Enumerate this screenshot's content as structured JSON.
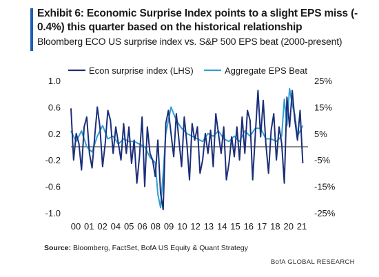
{
  "header": {
    "title_line1": "Exhibit 6: Economic Surprise Index points to a slight EPS miss (-",
    "title_line2": "0.4%) this quarter based on the historical relationship",
    "subtitle": "Bloomberg ECO US surprise index vs. S&P 500 EPS beat (2000-present)",
    "accent_color": "#1f5fae"
  },
  "chart_data": {
    "type": "line",
    "title": "",
    "xlabel": "",
    "ylabel_left": "",
    "ylabel_right": "",
    "x_tick_labels": [
      "00",
      "01",
      "02",
      "04",
      "05",
      "06",
      "08",
      "09",
      "10",
      "12",
      "13",
      "14",
      "15",
      "16",
      "17",
      "18",
      "20",
      "21"
    ],
    "x_range": [
      2000,
      2022.5
    ],
    "y_left_range": [
      -1.0,
      1.0
    ],
    "y_left_ticks": [
      1.0,
      0.6,
      0.2,
      -0.2,
      -0.6,
      -1.0
    ],
    "y_left_tick_labels": [
      "1.0",
      "0.6",
      "0.2",
      "-0.2",
      "-0.6",
      "-1.0"
    ],
    "y_right_range": [
      -25,
      25
    ],
    "y_right_ticks": [
      25,
      15,
      5,
      -5,
      -15,
      -25
    ],
    "y_right_tick_labels": [
      "25%",
      "15%",
      "5%",
      "-5%",
      "-15%",
      "-25%"
    ],
    "grid": false,
    "zero_line": true,
    "legend_position": "top",
    "series": [
      {
        "name": "Econ surprise index (LHS)",
        "axis": "left",
        "color": "#1b2f78",
        "x": [
          2000,
          2000.25,
          2000.5,
          2000.75,
          2001,
          2001.25,
          2001.5,
          2001.75,
          2002,
          2002.25,
          2002.5,
          2002.75,
          2003,
          2003.25,
          2003.5,
          2003.75,
          2004,
          2004.25,
          2004.5,
          2004.75,
          2005,
          2005.25,
          2005.5,
          2005.75,
          2006,
          2006.25,
          2006.5,
          2006.75,
          2007,
          2007.25,
          2007.5,
          2007.75,
          2008,
          2008.25,
          2008.5,
          2008.75,
          2009,
          2009.25,
          2009.5,
          2009.75,
          2010,
          2010.25,
          2010.5,
          2010.75,
          2011,
          2011.25,
          2011.5,
          2011.75,
          2012,
          2012.25,
          2012.5,
          2012.75,
          2013,
          2013.25,
          2013.5,
          2013.75,
          2014,
          2014.25,
          2014.5,
          2014.75,
          2015,
          2015.25,
          2015.5,
          2015.75,
          2016,
          2016.25,
          2016.5,
          2016.75,
          2017,
          2017.25,
          2017.5,
          2017.75,
          2018,
          2018.25,
          2018.5,
          2018.75,
          2019,
          2019.25,
          2019.5,
          2019.75,
          2020,
          2020.25,
          2020.5,
          2020.75,
          2021,
          2021.25,
          2021.5,
          2021.75,
          2022
        ],
        "values": [
          0.58,
          -0.2,
          0.2,
          0.05,
          -0.35,
          0.3,
          0.45,
          -0.1,
          -0.32,
          0.15,
          0.6,
          0.3,
          -0.3,
          0.05,
          0.55,
          0.4,
          -0.1,
          0.3,
          0.05,
          -0.2,
          0.35,
          -0.1,
          0.3,
          -0.25,
          0.1,
          -0.55,
          -0.15,
          0.45,
          -0.6,
          0.3,
          -0.1,
          -0.2,
          -0.45,
          0.1,
          -0.7,
          -0.95,
          0.35,
          0.55,
          0.2,
          -0.15,
          0.5,
          0.1,
          -0.3,
          0.45,
          0.05,
          -0.5,
          0.35,
          0.1,
          0.3,
          -0.4,
          -0.2,
          0.2,
          -0.1,
          0.25,
          -0.3,
          0.5,
          0.2,
          -0.1,
          0.3,
          -0.5,
          -0.25,
          0.15,
          -0.15,
          0.3,
          -0.2,
          0.45,
          -0.1,
          0.55,
          0.4,
          -0.5,
          0.2,
          0.85,
          0.15,
          0.7,
          0.05,
          -0.4,
          0.25,
          0.5,
          -0.2,
          0.3,
          0.05,
          -0.55,
          0.75,
          0.3,
          0.85,
          0.4,
          0.1,
          0.55,
          -0.25
        ]
      },
      {
        "name": "Aggregate EPS Beat",
        "axis": "right",
        "color": "#2f9fd6",
        "x": [
          2000,
          2000.5,
          2001,
          2001.5,
          2002,
          2002.5,
          2003,
          2003.5,
          2004,
          2004.5,
          2005,
          2005.5,
          2006,
          2006.5,
          2007,
          2007.5,
          2008,
          2008.25,
          2008.5,
          2008.75,
          2009,
          2009.5,
          2010,
          2010.5,
          2011,
          2011.5,
          2012,
          2012.5,
          2013,
          2013.5,
          2014,
          2014.5,
          2015,
          2015.5,
          2016,
          2016.5,
          2017,
          2017.5,
          2018,
          2018.5,
          2019,
          2019.5,
          2020,
          2020.25,
          2020.5,
          2020.75,
          2021,
          2021.25,
          2021.5,
          2022
        ],
        "values": [
          6,
          2,
          6,
          0,
          -2,
          4,
          8,
          3,
          4,
          1,
          3,
          2,
          2,
          1,
          0,
          -4,
          -6,
          -18,
          -23,
          -10,
          5,
          15,
          10,
          7,
          5,
          4,
          3,
          2,
          5,
          4,
          6,
          3,
          2,
          4,
          2,
          6,
          4,
          7,
          7,
          3,
          3,
          2,
          4,
          18,
          8,
          22,
          16,
          12,
          4,
          8
        ]
      }
    ]
  },
  "footer": {
    "source_label": "Source:",
    "source_text": "Bloomberg, FactSet, BofA US Equity & Quant Strategy",
    "brand": "BofA GLOBAL RESEARCH"
  }
}
